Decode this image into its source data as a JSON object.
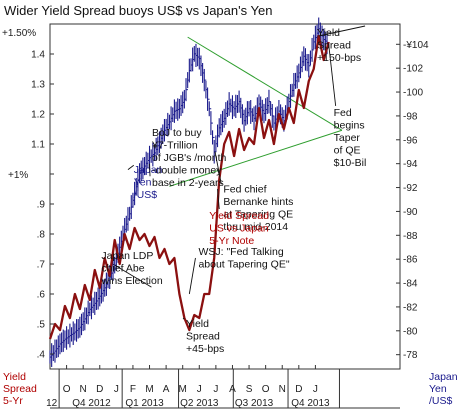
{
  "chart_data": {
    "type": "line",
    "title": "Wider Yield Spread buoys US$ vs Japan's Yen",
    "left_axis": {
      "ylim": [
        0.35,
        1.5
      ],
      "tick_values": [
        0.4,
        0.5,
        0.6,
        0.7,
        0.8,
        0.9,
        1.1,
        1.2,
        1.3,
        1.4
      ],
      "tick_labels": [
        ".4",
        ".5",
        ".6",
        ".7",
        ".8",
        ".9",
        "1.1",
        "1.2",
        "1.3",
        "1.4"
      ],
      "top_label": "+1.50%",
      "mid_label": "+1%",
      "unit_label_lines": [
        "Yield",
        "Spread",
        "5-Yr"
      ]
    },
    "right_axis": {
      "ylim": [
        76.8,
        105.7
      ],
      "tick_values": [
        78,
        80,
        82,
        84,
        86,
        88,
        90,
        92,
        94,
        96,
        98,
        100,
        102,
        104
      ],
      "tick_labels": [
        "78",
        "80",
        "82",
        "84",
        "86",
        "88",
        "90",
        "92",
        "94",
        "96",
        "98",
        "100",
        "102",
        "104"
      ],
      "prefix": "-¥",
      "unit_label_lines": [
        "Japan",
        "Yen",
        "/US$"
      ]
    },
    "x_axis": {
      "xlim": [
        0,
        21.1
      ],
      "month_ticks": [
        {
          "x": 1,
          "label": "O"
        },
        {
          "x": 2,
          "label": "N"
        },
        {
          "x": 3,
          "label": "D"
        },
        {
          "x": 4,
          "label": "J"
        },
        {
          "x": 5,
          "label": "F"
        },
        {
          "x": 6,
          "label": "M"
        },
        {
          "x": 7,
          "label": "A"
        },
        {
          "x": 8,
          "label": "M"
        },
        {
          "x": 9,
          "label": "J"
        },
        {
          "x": 10,
          "label": "J"
        },
        {
          "x": 11,
          "label": "A"
        },
        {
          "x": 12,
          "label": "S"
        },
        {
          "x": 13,
          "label": "O"
        },
        {
          "x": 14,
          "label": "N"
        },
        {
          "x": 15,
          "label": "D"
        },
        {
          "x": 16,
          "label": "J"
        }
      ],
      "quarter_labels": [
        {
          "x": 0.1,
          "label": "12"
        },
        {
          "x": 2.5,
          "label": "Q4 2012"
        },
        {
          "x": 5.7,
          "label": "Q1 2013"
        },
        {
          "x": 9.0,
          "label": "Q2 2013"
        },
        {
          "x": 12.3,
          "label": "Q3 2013"
        },
        {
          "x": 15.7,
          "label": "Q4 2013"
        }
      ],
      "quarter_dividers": [
        0.55,
        4.35,
        7.75,
        11.05,
        14.35,
        17.45
      ]
    },
    "series": [
      {
        "name": "Yield Spread US vs Japan 5-Yr Note",
        "axis": "left",
        "color": "#8b1010",
        "x": [
          0,
          0.3,
          0.6,
          0.9,
          1.2,
          1.5,
          1.8,
          2.1,
          2.4,
          2.7,
          3.0,
          3.3,
          3.6,
          3.9,
          4.2,
          4.5,
          4.8,
          5.1,
          5.4,
          5.7,
          6.0,
          6.3,
          6.6,
          6.9,
          7.2,
          7.5,
          7.8,
          8.1,
          8.4,
          8.7,
          9.0,
          9.3,
          9.6,
          9.9,
          10.2,
          10.5,
          10.8,
          11.1,
          11.4,
          11.7,
          12.0,
          12.3,
          12.6,
          12.9,
          13.2,
          13.5,
          13.8,
          14.1,
          14.4,
          14.7,
          15.0,
          15.3,
          15.6,
          15.9,
          16.2,
          16.5,
          16.8
        ],
        "values": [
          0.45,
          0.5,
          0.48,
          0.56,
          0.52,
          0.6,
          0.55,
          0.63,
          0.58,
          0.68,
          0.62,
          0.72,
          0.66,
          0.78,
          0.7,
          0.8,
          0.75,
          0.82,
          0.78,
          0.8,
          0.76,
          0.79,
          0.72,
          0.75,
          0.7,
          0.72,
          0.6,
          0.52,
          0.48,
          0.53,
          0.52,
          0.6,
          0.6,
          0.72,
          0.98,
          1.1,
          1.14,
          1.06,
          1.15,
          1.08,
          1.12,
          1.1,
          1.22,
          1.12,
          1.18,
          1.1,
          1.2,
          1.15,
          1.22,
          1.17,
          1.28,
          1.22,
          1.31,
          1.35,
          1.46,
          1.38,
          1.44
        ]
      },
      {
        "name": "Japan Yen /US$",
        "axis": "right",
        "color": "#1a1a8c",
        "x": [
          0,
          0.3,
          0.6,
          0.9,
          1.2,
          1.5,
          1.8,
          2.1,
          2.4,
          2.7,
          3.0,
          3.3,
          3.6,
          3.9,
          4.2,
          4.5,
          4.8,
          5.1,
          5.4,
          5.7,
          6.0,
          6.3,
          6.6,
          6.9,
          7.2,
          7.5,
          7.8,
          8.1,
          8.4,
          8.7,
          9.0,
          9.3,
          9.6,
          9.9,
          10.2,
          10.5,
          10.8,
          11.1,
          11.4,
          11.7,
          12.0,
          12.3,
          12.6,
          12.9,
          13.2,
          13.5,
          13.8,
          14.1,
          14.4,
          14.7,
          15.0,
          15.3,
          15.6,
          15.9,
          16.2,
          16.5,
          16.8
        ],
        "values": [
          77.8,
          78.3,
          78.9,
          79.3,
          79.6,
          79.9,
          80.3,
          81.0,
          81.8,
          82.3,
          82.9,
          83.6,
          84.5,
          85.5,
          87.0,
          88.5,
          89.8,
          91.5,
          93.2,
          93.8,
          94.5,
          94.9,
          95.8,
          96.8,
          97.5,
          98.4,
          98.6,
          99.4,
          101.8,
          103.2,
          102.8,
          101.0,
          98.6,
          95.0,
          97.0,
          97.8,
          99.0,
          98.6,
          99.2,
          97.6,
          98.6,
          97.8,
          99.0,
          98.2,
          99.2,
          97.4,
          98.4,
          97.6,
          99.2,
          100.6,
          101.6,
          103.0,
          102.2,
          104.2,
          105.3,
          104.4,
          104.0
        ]
      }
    ],
    "trendlines": [
      {
        "x1": 8.3,
        "y1": 104.6,
        "x2": 17.6,
        "y2": 96.8,
        "axis": "right"
      },
      {
        "x1": 7.2,
        "y1": 92.1,
        "x2": 17.6,
        "y2": 96.8,
        "axis": "right"
      }
    ],
    "annotations": [
      {
        "id": "boj",
        "lines": [
          "BoJ to buy",
          "¥7-Trillion",
          "of JGB's /month",
          "-double money",
          "base in 2-years"
        ],
        "color": "black",
        "x": 6.15,
        "y": 96.3
      },
      {
        "id": "yen",
        "lines": [
          "Japan",
          "Yen",
          "/US$"
        ],
        "color": "blue",
        "x": 5.05,
        "y": 93.2
      },
      {
        "id": "abe",
        "lines": [
          "Japan LDP",
          "chief Abe",
          "wins Election"
        ],
        "color": "black",
        "x": 3.1,
        "y": 86.0
      },
      {
        "id": "bernanke",
        "lines": [
          "Fed chief",
          "Bernanke hints",
          "at Tapering QE",
          "thru mid-2014"
        ],
        "color": "black",
        "x": 10.45,
        "y": 91.6
      },
      {
        "id": "spread",
        "lines": [
          "Yield Spread",
          "US vs Japan",
          "5-Yr Note"
        ],
        "color": "red",
        "x": 9.6,
        "y": 0.85
      },
      {
        "id": "wsj",
        "lines": [
          "WSJ: \"Fed Talking",
          "about Tapering QE\""
        ],
        "color": "black",
        "x": 8.95,
        "y": 0.73
      },
      {
        "id": "low",
        "lines": [
          "Yield",
          "Spread",
          "+45-bps"
        ],
        "color": "black",
        "x": 8.2,
        "y": 0.49
      },
      {
        "id": "high",
        "lines": [
          "Yield",
          "Spread",
          "+150-bps"
        ],
        "color": "black",
        "x": 16.1,
        "y": 1.46
      },
      {
        "id": "fed",
        "lines": [
          "Fed",
          "begins",
          "Taper",
          "of QE",
          "$10-Bil"
        ],
        "color": "black",
        "x": 17.1,
        "y": 98.0
      }
    ]
  }
}
